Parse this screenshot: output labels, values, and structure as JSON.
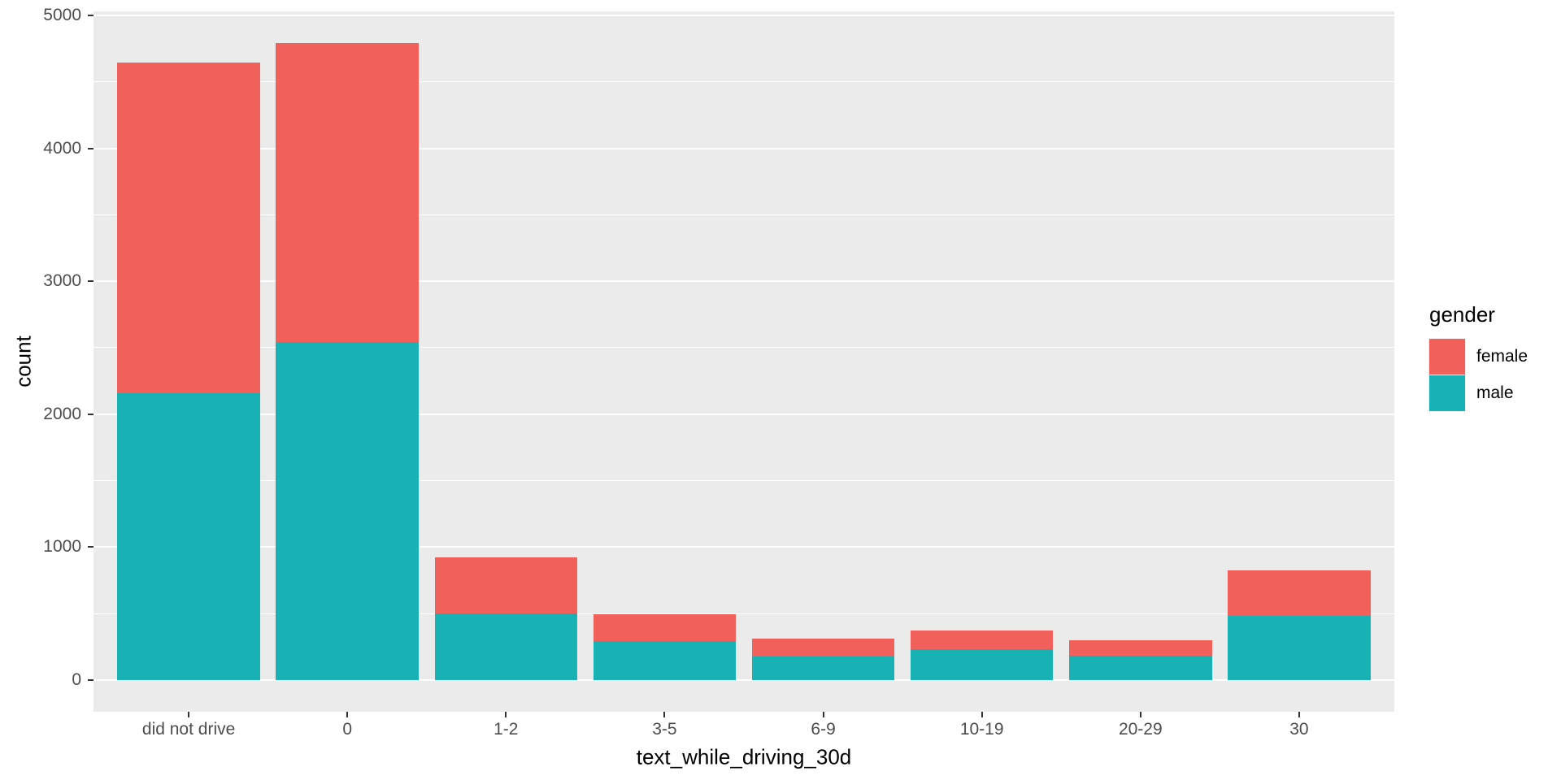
{
  "chart_data": {
    "type": "bar",
    "stacked": true,
    "xlabel": "text_while_driving_30d",
    "ylabel": "count",
    "categories": [
      "did not drive",
      "0",
      "1-2",
      "3-5",
      "6-9",
      "10-19",
      "20-29",
      "30"
    ],
    "series": [
      {
        "name": "male",
        "color": "#18b2b4",
        "values": [
          2160,
          2542,
          500,
          290,
          178,
          230,
          180,
          483
        ]
      },
      {
        "name": "female",
        "color": "#f2605b",
        "values": [
          2486,
          2250,
          425,
          203,
          133,
          143,
          118,
          344
        ]
      }
    ],
    "totals": [
      4646,
      4792,
      925,
      493,
      311,
      373,
      298,
      827
    ],
    "y_ticks": [
      0,
      1000,
      2000,
      3000,
      4000,
      5000
    ],
    "y_minor_ticks": [
      500,
      1500,
      2500,
      3500,
      4500
    ],
    "ylim": [
      0,
      5000
    ],
    "grid": true,
    "legend": {
      "title": "gender",
      "position": "right",
      "entries": [
        {
          "label": "female",
          "color": "#f2605b"
        },
        {
          "label": "male",
          "color": "#18b2b4"
        }
      ]
    },
    "colors": {
      "panel_bg": "#ebebeb",
      "grid": "#ffffff",
      "tick_mark": "#333333",
      "tick_text": "#4d4d4d",
      "title_text": "#000000",
      "outer_bg": "#ffffff"
    }
  }
}
